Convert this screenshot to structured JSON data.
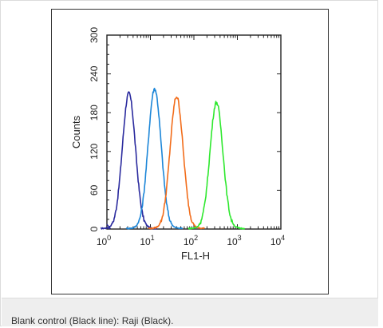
{
  "caption": "Blank control (Black line): Raji (Black).",
  "chart_data": {
    "type": "line",
    "title": "",
    "xlabel": "FL1-H",
    "ylabel": "Counts",
    "x_scale": "log",
    "xlim": [
      1,
      10000
    ],
    "ylim": [
      0,
      300
    ],
    "x_ticks": [
      {
        "value": 1,
        "base": "10",
        "exp": "0"
      },
      {
        "value": 10,
        "base": "10",
        "exp": "1"
      },
      {
        "value": 100,
        "base": "10",
        "exp": "2"
      },
      {
        "value": 1000,
        "base": "10",
        "exp": "3"
      },
      {
        "value": 10000,
        "base": "10",
        "exp": "4"
      }
    ],
    "y_ticks": [
      "0",
      "60",
      "120",
      "180",
      "240",
      "300"
    ],
    "grid": false,
    "series": [
      {
        "color": "#2a2a9e",
        "peak_x": 3.2,
        "peak_y": 210
      },
      {
        "color": "#1c86d8",
        "peak_x": 12.5,
        "peak_y": 217
      },
      {
        "color": "#f26c1a",
        "peak_x": 40,
        "peak_y": 205
      },
      {
        "color": "#2ee82e",
        "peak_x": 330,
        "peak_y": 196
      }
    ]
  }
}
